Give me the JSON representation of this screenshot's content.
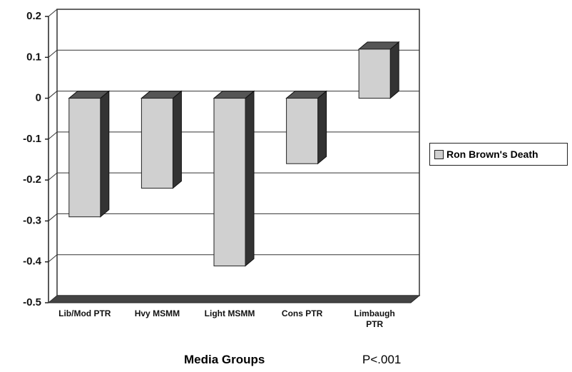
{
  "chart_data": {
    "type": "bar",
    "categories": [
      "Lib/Mod PTR",
      "Hvy MSMM",
      "Light MSMM",
      "Cons PTR",
      "Limbaugh PTR"
    ],
    "series": [
      {
        "name": "Ron Brown's Death",
        "color": "#d0d0d0",
        "values": [
          -0.29,
          -0.22,
          -0.41,
          -0.16,
          0.12
        ]
      }
    ],
    "ylim": [
      -0.5,
      0.2
    ],
    "yticks": [
      0.2,
      0.1,
      0,
      -0.1,
      -0.2,
      -0.3,
      -0.4,
      -0.5
    ],
    "grid": true,
    "legend": "right",
    "x_label": "Media Groups",
    "annotation": "P<.001"
  }
}
